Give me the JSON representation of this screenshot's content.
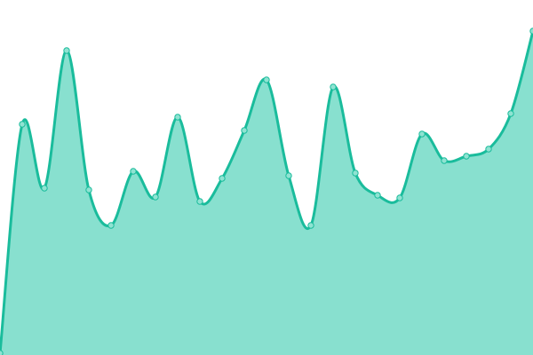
{
  "chart_data": {
    "type": "area",
    "title": "",
    "xlabel": "",
    "ylabel": "",
    "x": [
      0,
      1,
      2,
      3,
      4,
      5,
      6,
      7,
      8,
      9,
      10,
      11,
      12,
      13,
      14,
      15,
      16,
      17,
      18,
      19,
      20,
      21,
      22,
      23,
      24
    ],
    "values": [
      2,
      260,
      188,
      343,
      186,
      146,
      207,
      178,
      268,
      173,
      199,
      253,
      310,
      202,
      146,
      302,
      205,
      180,
      177,
      249,
      219,
      224,
      232,
      272,
      365
    ],
    "ylim": [
      0,
      400
    ],
    "xlim": [
      0,
      24
    ],
    "grid": false,
    "axes_visible": false,
    "smooth": true,
    "colors": {
      "line": "#1abc9c",
      "fill": "#88e0cf",
      "point_fill": "#8fe3d2",
      "point_stroke": "#1abc9c"
    }
  }
}
